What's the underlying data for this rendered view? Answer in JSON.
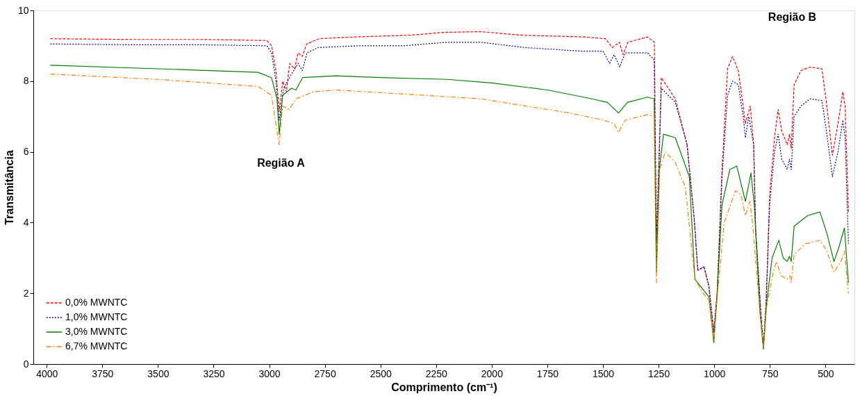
{
  "chart_data": {
    "type": "line",
    "xlabel": "Comprimento (cm⁻¹)",
    "ylabel": "Transmitância",
    "xlim": [
      4060,
      370
    ],
    "xticks": [
      4000,
      3750,
      3500,
      3250,
      3000,
      2750,
      2500,
      2250,
      2000,
      1750,
      1500,
      1250,
      1000,
      750,
      500
    ],
    "ylim": [
      0,
      10
    ],
    "yticks": [
      0,
      2,
      4,
      6,
      8,
      10
    ],
    "grid": false,
    "legend": "bottom left",
    "marker": "none",
    "annotations": [
      "Região A",
      "Região B"
    ],
    "series": [
      {
        "name": "0,0% MWNTC",
        "color": "#ff0000",
        "line_style": "dashed",
        "x": [
          3984,
          3623,
          3309,
          3011,
          2989,
          2970,
          2955,
          2939,
          2923,
          2908,
          2886,
          2870,
          2851,
          2832,
          2776,
          2619,
          2368,
          2211,
          2054,
          1865,
          1583,
          1489,
          1457,
          1426,
          1410,
          1388,
          1300,
          1269,
          1260,
          1247,
          1238,
          1175,
          1122,
          1090,
          1074,
          1046,
          1024,
          1002,
          987,
          965,
          940,
          918,
          892,
          870,
          860,
          838,
          823,
          814,
          789,
          779,
          767,
          751,
          729,
          713,
          697,
          672,
          662,
          654,
          641,
          610,
          569,
          516,
          494,
          469,
          444,
          422,
          412,
          397
        ],
        "values": [
          9.2,
          9.18,
          9.18,
          9.15,
          9.0,
          8.3,
          7.15,
          8.0,
          7.7,
          8.5,
          8.35,
          8.8,
          8.7,
          9.05,
          9.2,
          9.25,
          9.3,
          9.38,
          9.4,
          9.3,
          9.25,
          9.2,
          8.95,
          9.1,
          8.75,
          9.1,
          9.25,
          9.1,
          3.4,
          6.0,
          8.1,
          7.5,
          6.2,
          4.1,
          2.65,
          2.75,
          2.2,
          0.9,
          2.0,
          5.5,
          8.35,
          8.7,
          8.3,
          7.3,
          6.8,
          7.3,
          6.2,
          3.8,
          1.3,
          0.5,
          1.7,
          4.8,
          6.4,
          7.2,
          6.6,
          6.2,
          6.5,
          6.1,
          7.9,
          8.3,
          8.4,
          8.35,
          7.3,
          5.9,
          6.8,
          7.7,
          7.3,
          4.3
        ]
      },
      {
        "name": "1,0% MWNTC",
        "color": "#0000a0",
        "line_style": "dotted",
        "x": [
          3984,
          3623,
          3309,
          3011,
          2989,
          2970,
          2955,
          2935,
          2900,
          2870,
          2851,
          2830,
          2780,
          2600,
          2400,
          2200,
          2050,
          1850,
          1600,
          1500,
          1470,
          1450,
          1425,
          1400,
          1300,
          1270,
          1260,
          1247,
          1238,
          1175,
          1122,
          1090,
          1074,
          1046,
          1024,
          1002,
          987,
          965,
          940,
          918,
          892,
          870,
          860,
          845,
          823,
          814,
          789,
          779,
          767,
          751,
          729,
          713,
          697,
          672,
          662,
          654,
          641,
          610,
          569,
          516,
          494,
          469,
          444,
          422,
          412,
          397
        ],
        "values": [
          9.05,
          9.03,
          9.03,
          9.0,
          8.8,
          8.0,
          6.9,
          7.8,
          8.2,
          8.5,
          8.3,
          8.8,
          8.95,
          9.0,
          9.0,
          9.1,
          9.1,
          8.95,
          8.85,
          8.85,
          8.5,
          8.75,
          8.4,
          8.8,
          8.8,
          8.6,
          3.4,
          6.0,
          7.8,
          7.4,
          6.2,
          4.1,
          2.65,
          2.75,
          2.2,
          0.9,
          2.0,
          5.3,
          7.6,
          8.0,
          7.9,
          7.0,
          6.4,
          7.0,
          6.2,
          3.8,
          1.3,
          0.5,
          1.7,
          4.5,
          6.0,
          6.5,
          5.8,
          5.5,
          5.8,
          5.5,
          7.0,
          7.3,
          7.5,
          7.45,
          6.5,
          5.3,
          6.0,
          6.9,
          6.4,
          3.4
        ]
      },
      {
        "name": "3,0% MWNTC",
        "color": "#008000",
        "line_style": "solid",
        "x": [
          3984,
          3500,
          3050,
          2990,
          2965,
          2955,
          2940,
          2900,
          2880,
          2850,
          2700,
          2500,
          2200,
          2000,
          1750,
          1550,
          1480,
          1430,
          1390,
          1300,
          1270,
          1260,
          1247,
          1228,
          1175,
          1112,
          1087,
          1049,
          1024,
          1002,
          987,
          965,
          930,
          899,
          860,
          835,
          820,
          795,
          779,
          765,
          740,
          710,
          690,
          672,
          662,
          654,
          641,
          580,
          525,
          494,
          462,
          440,
          415,
          397
        ],
        "values": [
          8.45,
          8.35,
          8.25,
          8.1,
          7.5,
          6.5,
          7.6,
          7.8,
          7.75,
          8.1,
          8.15,
          8.1,
          8.05,
          7.95,
          7.75,
          7.5,
          7.4,
          7.1,
          7.4,
          7.55,
          7.5,
          2.6,
          5.5,
          6.5,
          6.4,
          5.3,
          2.4,
          2.1,
          1.9,
          0.6,
          2.0,
          4.5,
          5.5,
          5.6,
          4.6,
          5.4,
          4.5,
          1.5,
          0.42,
          1.7,
          3.0,
          3.5,
          3.0,
          2.9,
          3.05,
          2.9,
          3.9,
          4.2,
          4.3,
          3.7,
          2.9,
          3.3,
          3.85,
          2.3
        ]
      },
      {
        "name": "6,7% MWNTC",
        "color": "#ff8000",
        "line_style": "dashdot",
        "x": [
          3984,
          3500,
          3050,
          2990,
          2955,
          2940,
          2910,
          2880,
          2800,
          2700,
          2300,
          2050,
          1850,
          1650,
          1500,
          1450,
          1430,
          1400,
          1300,
          1270,
          1260,
          1245,
          1220,
          1175,
          1130,
          1087,
          1049,
          1024,
          1002,
          985,
          955,
          905,
          880,
          860,
          840,
          828,
          795,
          779,
          765,
          735,
          720,
          700,
          672,
          660,
          654,
          641,
          590,
          525,
          494,
          462,
          430,
          415,
          397
        ],
        "values": [
          8.2,
          8.05,
          7.85,
          7.6,
          6.2,
          7.3,
          7.2,
          7.5,
          7.7,
          7.75,
          7.6,
          7.5,
          7.3,
          7.1,
          6.9,
          6.8,
          6.55,
          6.9,
          7.05,
          7.0,
          2.3,
          5.5,
          6.0,
          5.7,
          5.0,
          2.4,
          2.0,
          1.8,
          0.7,
          2.0,
          4.0,
          4.9,
          4.8,
          4.2,
          4.6,
          4.0,
          1.5,
          0.5,
          1.6,
          2.6,
          2.9,
          2.5,
          2.4,
          2.5,
          2.3,
          3.1,
          3.4,
          3.5,
          3.2,
          2.6,
          2.9,
          3.2,
          2.0
        ]
      }
    ]
  }
}
